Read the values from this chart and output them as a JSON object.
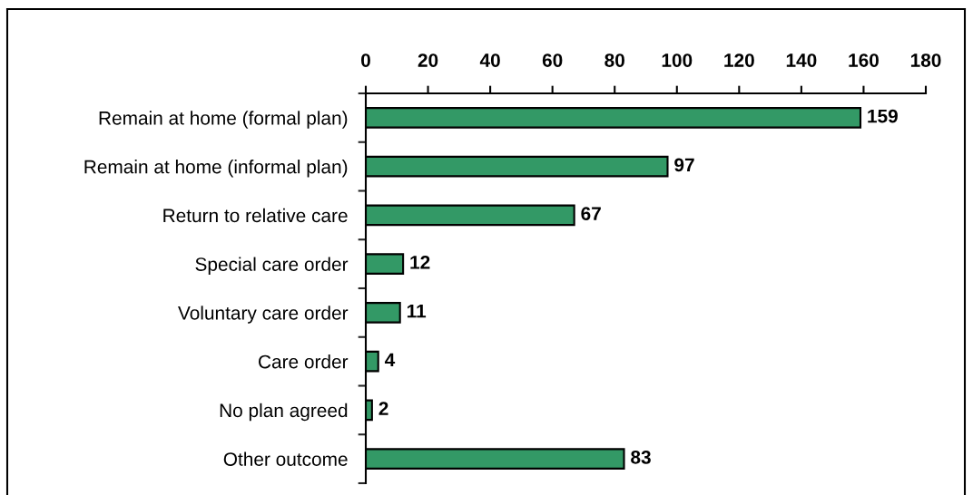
{
  "chart_data": {
    "type": "bar",
    "orientation": "horizontal",
    "categories": [
      "Remain at home (formal plan)",
      "Remain at home (informal plan)",
      "Return to relative care",
      "Special care order",
      "Voluntary care order",
      "Care order",
      "No plan agreed",
      "Other outcome"
    ],
    "values": [
      159,
      97,
      67,
      12,
      11,
      4,
      2,
      83
    ],
    "color": "#339966",
    "xlim": [
      0,
      180
    ],
    "xticks": [
      0,
      20,
      40,
      60,
      80,
      100,
      120,
      140,
      160,
      180
    ],
    "data_labels": true,
    "grid": false
  }
}
